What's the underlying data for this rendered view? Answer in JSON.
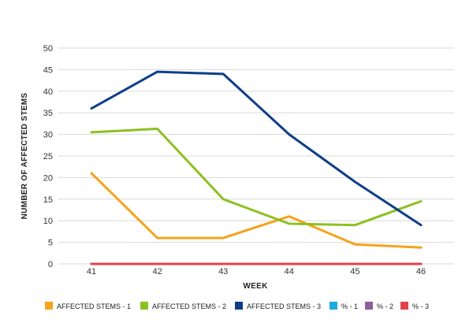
{
  "chart_data": {
    "type": "line",
    "title": "",
    "xlabel": "WEEK",
    "ylabel": "NUMBER OF AFFECTED STEMS",
    "x": [
      41,
      42,
      43,
      44,
      45,
      46
    ],
    "ylim": [
      0,
      50
    ],
    "yticks": [
      0,
      5,
      10,
      15,
      20,
      25,
      30,
      35,
      40,
      45,
      50
    ],
    "grid": true,
    "legend_position": "bottom",
    "series": [
      {
        "name": "AFFECTED STEMS - 1",
        "color": "#F5A31C",
        "values": [
          21,
          6,
          6,
          11,
          4.5,
          3.8
        ]
      },
      {
        "name": "AFFECTED STEMS - 2",
        "color": "#8DC021",
        "values": [
          30.5,
          31.3,
          15,
          9.3,
          9,
          14.5
        ]
      },
      {
        "name": "AFFECTED STEMS - 3",
        "color": "#0E3E8A",
        "values": [
          36,
          44.5,
          44,
          30,
          19,
          9
        ]
      },
      {
        "name": "% - 1",
        "color": "#1DAAE0",
        "values": [
          0,
          0,
          0,
          0,
          0,
          0
        ]
      },
      {
        "name": "% - 2",
        "color": "#8E5F9E",
        "values": [
          0,
          0,
          0,
          0,
          0,
          0
        ]
      },
      {
        "name": "% - 3",
        "color": "#E0424A",
        "values": [
          0,
          0,
          0,
          0,
          0,
          0
        ]
      }
    ]
  }
}
